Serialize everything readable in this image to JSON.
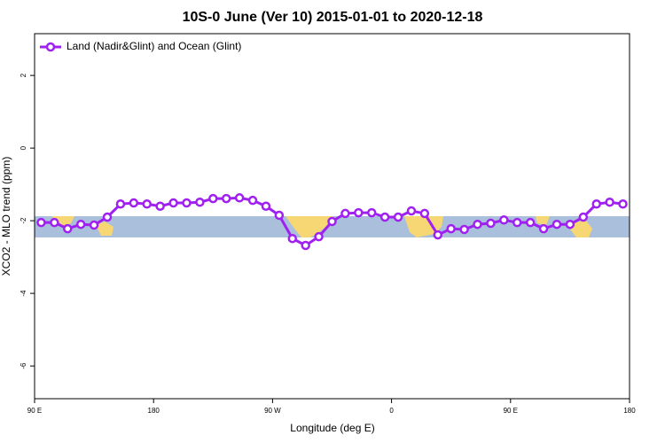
{
  "chart_data": {
    "type": "line",
    "title": "10S-0 June (Ver 10)   2015-01-01 to 2020-12-18",
    "x_label": "Longitude (deg E)",
    "y_label": "XCO2 - MLO trend (ppm)",
    "xlim": [
      90,
      540
    ],
    "ylim": [
      -6.9,
      3.15
    ],
    "xticks": [
      {
        "value": 90,
        "label": "90 E"
      },
      {
        "value": 180,
        "label": "180"
      },
      {
        "value": 270,
        "label": "90 W"
      },
      {
        "value": 360,
        "label": "0"
      },
      {
        "value": 450,
        "label": "90 E"
      },
      {
        "value": 540,
        "label": "180"
      }
    ],
    "yticks": [
      2,
      0,
      -2,
      -4,
      -6
    ],
    "legend": "top-left",
    "x": [
      95,
      105,
      115,
      125,
      135,
      145,
      155,
      165,
      175,
      185,
      195,
      205,
      215,
      225,
      235,
      245,
      255,
      265,
      275,
      285,
      295,
      305,
      315,
      325,
      335,
      345,
      355,
      365,
      375,
      385,
      395,
      405,
      415,
      425,
      435,
      445,
      455,
      465,
      475,
      485,
      495,
      505,
      515,
      525,
      535
    ],
    "series": [
      {
        "name": "Land (Nadir&Glint) and Ocean (Glint)",
        "color": "#a020f0",
        "values": [
          -2.05,
          -2.05,
          -2.22,
          -2.1,
          -2.12,
          -1.9,
          -1.54,
          -1.51,
          -1.54,
          -1.6,
          -1.51,
          -1.51,
          -1.49,
          -1.39,
          -1.39,
          -1.37,
          -1.44,
          -1.6,
          -1.85,
          -2.49,
          -2.68,
          -2.44,
          -2.02,
          -1.8,
          -1.78,
          -1.78,
          -1.9,
          -1.9,
          -1.73,
          -1.8,
          -2.39,
          -2.22,
          -2.24,
          -2.1,
          -2.07,
          -1.98,
          -2.05,
          -2.05,
          -2.22,
          -2.1,
          -2.1,
          -1.9,
          -1.54,
          -1.49,
          -1.54
        ]
      }
    ]
  }
}
